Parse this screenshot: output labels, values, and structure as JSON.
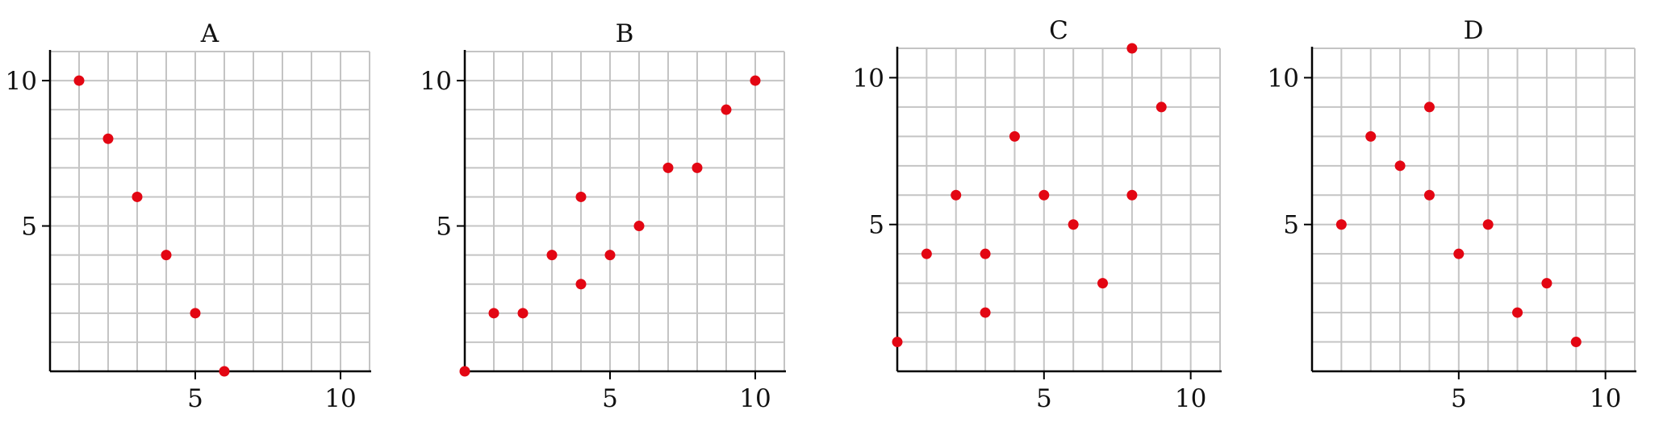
{
  "colors": {
    "point": "#e30613",
    "grid": "#c4c4c4",
    "axis": "#000000"
  },
  "chart_data": [
    {
      "type": "scatter",
      "title": "A",
      "xlim": [
        0,
        11
      ],
      "ylim": [
        0,
        11
      ],
      "xticks": [
        "5",
        "10"
      ],
      "yticks": [
        "5",
        "10"
      ],
      "grid": true,
      "points": [
        {
          "x": 1,
          "y": 10
        },
        {
          "x": 2,
          "y": 8
        },
        {
          "x": 3,
          "y": 6
        },
        {
          "x": 4,
          "y": 4
        },
        {
          "x": 5,
          "y": 2
        },
        {
          "x": 6,
          "y": 0
        }
      ]
    },
    {
      "type": "scatter",
      "title": "B",
      "xlim": [
        0,
        11
      ],
      "ylim": [
        0,
        11
      ],
      "xticks": [
        "5",
        "10"
      ],
      "yticks": [
        "5",
        "10"
      ],
      "grid": true,
      "points": [
        {
          "x": 0,
          "y": 0
        },
        {
          "x": 1,
          "y": 2
        },
        {
          "x": 2,
          "y": 2
        },
        {
          "x": 3,
          "y": 4
        },
        {
          "x": 4,
          "y": 6
        },
        {
          "x": 4,
          "y": 3
        },
        {
          "x": 5,
          "y": 4
        },
        {
          "x": 6,
          "y": 5
        },
        {
          "x": 7,
          "y": 7
        },
        {
          "x": 8,
          "y": 7
        },
        {
          "x": 9,
          "y": 9
        },
        {
          "x": 10,
          "y": 10
        }
      ]
    },
    {
      "type": "scatter",
      "title": "C",
      "xlim": [
        0,
        11
      ],
      "ylim": [
        0,
        11
      ],
      "xticks": [
        "5",
        "10"
      ],
      "yticks": [
        "5",
        "10"
      ],
      "grid": true,
      "points": [
        {
          "x": 0,
          "y": 1
        },
        {
          "x": 1,
          "y": 4
        },
        {
          "x": 2,
          "y": 6
        },
        {
          "x": 3,
          "y": 4
        },
        {
          "x": 3,
          "y": 2
        },
        {
          "x": 4,
          "y": 8
        },
        {
          "x": 5,
          "y": 6
        },
        {
          "x": 6,
          "y": 5
        },
        {
          "x": 7,
          "y": 3
        },
        {
          "x": 8,
          "y": 11
        },
        {
          "x": 8,
          "y": 6
        },
        {
          "x": 9,
          "y": 9
        }
      ]
    },
    {
      "type": "scatter",
      "title": "D",
      "xlim": [
        0,
        11
      ],
      "ylim": [
        0,
        11
      ],
      "xticks": [
        "5",
        "10"
      ],
      "yticks": [
        "5",
        "10"
      ],
      "grid": true,
      "points": [
        {
          "x": 1,
          "y": 5
        },
        {
          "x": 2,
          "y": 8
        },
        {
          "x": 3,
          "y": 7
        },
        {
          "x": 4,
          "y": 9
        },
        {
          "x": 4,
          "y": 6
        },
        {
          "x": 5,
          "y": 4
        },
        {
          "x": 6,
          "y": 5
        },
        {
          "x": 7,
          "y": 2
        },
        {
          "x": 8,
          "y": 3
        },
        {
          "x": 9,
          "y": 1
        }
      ]
    }
  ]
}
